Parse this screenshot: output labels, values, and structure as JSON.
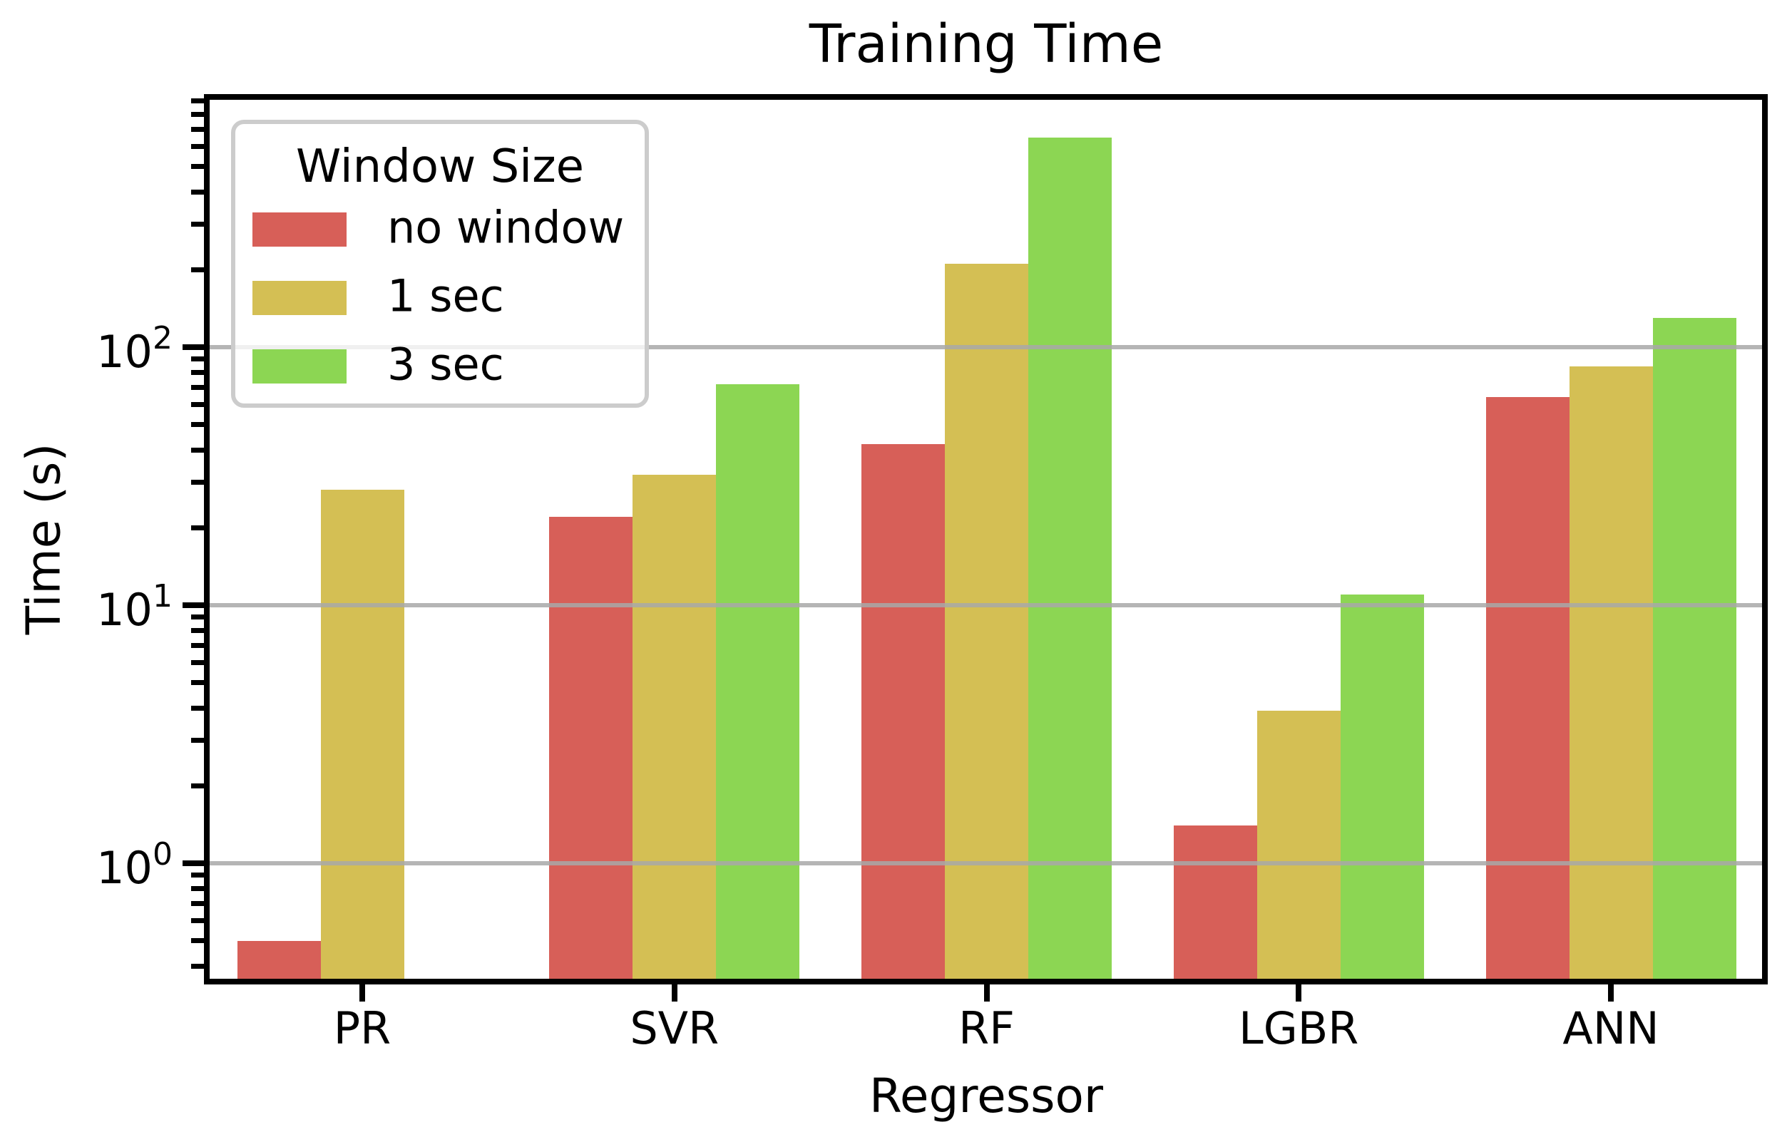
{
  "title": "Training Time",
  "axes": {
    "xlabel": "Regressor",
    "ylabel": "Time (s)",
    "y_scale": "log",
    "y_major_tick_exponents": [
      0,
      1,
      2
    ],
    "y_minor_ticks": true,
    "grid": "horizontal-major"
  },
  "legend": {
    "title": "Window Size"
  },
  "colors": {
    "no_window": "#d75f58",
    "one_sec": "#d4bf54",
    "three_sec": "#8cd653",
    "gridline": "#a8a8a8",
    "spine": "#000000",
    "legend_border": "#cccccc"
  },
  "chart_data": {
    "type": "bar",
    "title": "Training Time",
    "xlabel": "Regressor",
    "ylabel": "Time (s)",
    "yscale": "log",
    "ylim": [
      0.35,
      930
    ],
    "grid": "horizontal major gridlines at 1, 10, 100",
    "legend_position": "upper left",
    "legend_title": "Window Size",
    "categories": [
      "PR",
      "SVR",
      "RF",
      "LGBR",
      "ANN"
    ],
    "series": [
      {
        "name": "no window",
        "color": "#d75f58",
        "values": [
          0.5,
          22,
          42,
          1.4,
          64
        ]
      },
      {
        "name": "1 sec",
        "color": "#d4bf54",
        "values": [
          28,
          32,
          210,
          3.9,
          84
        ]
      },
      {
        "name": "3 sec",
        "color": "#8cd653",
        "values": [
          null,
          72,
          650,
          11,
          130
        ]
      }
    ]
  }
}
